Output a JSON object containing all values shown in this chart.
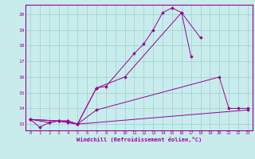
{
  "xlabel": "Windchill (Refroidissement éolien,°C)",
  "xlim": [
    -0.5,
    23.5
  ],
  "ylim": [
    12.6,
    20.6
  ],
  "bg_color": "#c8ecec",
  "line_color": "#990099",
  "grid_color": "#9ecece",
  "series": [
    {
      "x": [
        0,
        1,
        2,
        3,
        4,
        5,
        7,
        8,
        11,
        12,
        13,
        14,
        15,
        16,
        18
      ],
      "y": [
        13.3,
        12.8,
        13.1,
        13.2,
        13.2,
        13.0,
        15.3,
        15.4,
        17.5,
        18.1,
        19.0,
        20.1,
        20.4,
        20.1,
        18.5
      ]
    },
    {
      "x": [
        0,
        2,
        3,
        4,
        5,
        7,
        10,
        16,
        17
      ],
      "y": [
        13.3,
        13.1,
        13.2,
        13.2,
        13.0,
        15.3,
        16.0,
        20.1,
        17.3
      ]
    },
    {
      "x": [
        0,
        3,
        4,
        5,
        7,
        20,
        21,
        22,
        23
      ],
      "y": [
        13.3,
        13.2,
        13.1,
        13.0,
        13.9,
        16.0,
        14.0,
        14.0,
        14.0
      ]
    },
    {
      "x": [
        0,
        3,
        5,
        23
      ],
      "y": [
        13.3,
        13.2,
        13.0,
        13.9
      ]
    }
  ]
}
